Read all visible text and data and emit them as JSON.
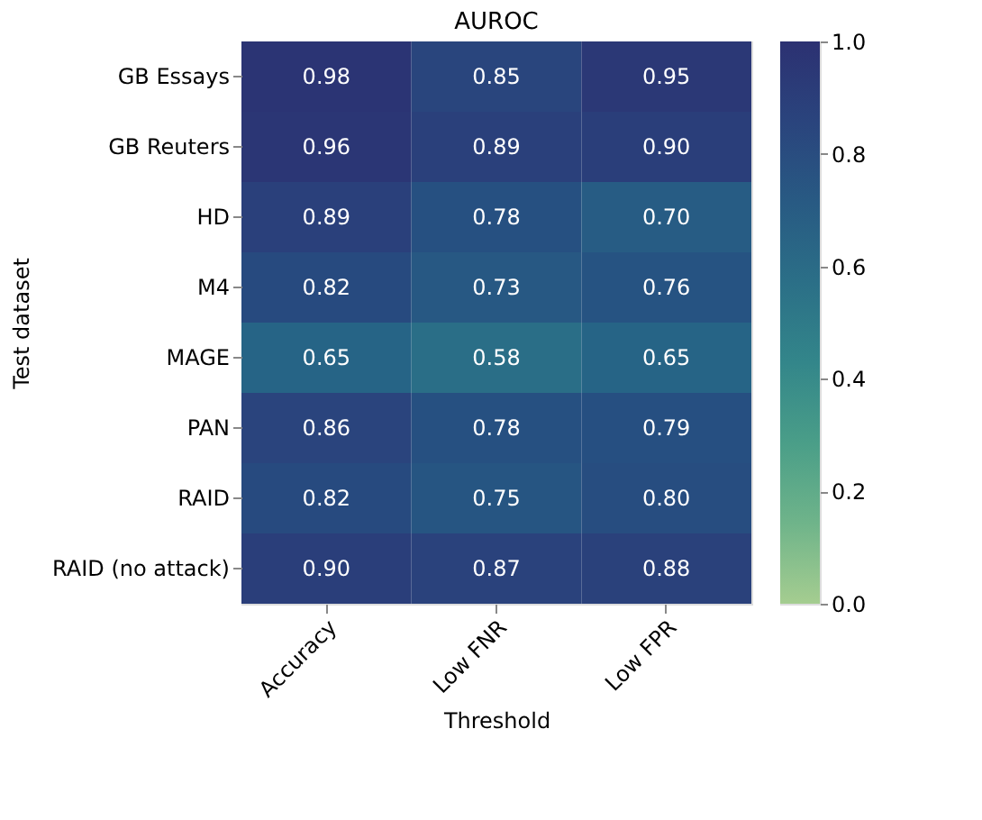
{
  "chart_data": {
    "type": "heatmap",
    "title": "AUROC",
    "xlabel": "Threshold",
    "ylabel": "Test dataset",
    "categories": [
      "Accuracy",
      "Low FNR",
      "Low FPR"
    ],
    "y_categories": [
      "GB Essays",
      "GB Reuters",
      "HD",
      "M4",
      "MAGE",
      "PAN",
      "RAID",
      "RAID (no attack)"
    ],
    "cells": [
      [
        0.98,
        0.85,
        0.95
      ],
      [
        0.96,
        0.89,
        0.9
      ],
      [
        0.89,
        0.78,
        0.7
      ],
      [
        0.82,
        0.73,
        0.76
      ],
      [
        0.65,
        0.58,
        0.65
      ],
      [
        0.86,
        0.78,
        0.79
      ],
      [
        0.82,
        0.75,
        0.8
      ],
      [
        0.9,
        0.87,
        0.88
      ]
    ],
    "cell_labels": [
      [
        "0.98",
        "0.85",
        "0.95"
      ],
      [
        "0.96",
        "0.89",
        "0.90"
      ],
      [
        "0.89",
        "0.78",
        "0.70"
      ],
      [
        "0.82",
        "0.73",
        "0.76"
      ],
      [
        "0.65",
        "0.58",
        "0.65"
      ],
      [
        "0.86",
        "0.78",
        "0.79"
      ],
      [
        "0.82",
        "0.75",
        "0.80"
      ],
      [
        "0.90",
        "0.87",
        "0.88"
      ]
    ],
    "clim": [
      0.0,
      1.0
    ],
    "cticks": [
      {
        "value": 0,
        "label": "0.0"
      },
      0.2,
      0.4,
      0.6,
      0.8,
      {
        "value": 1,
        "label": "1.0"
      }
    ]
  }
}
